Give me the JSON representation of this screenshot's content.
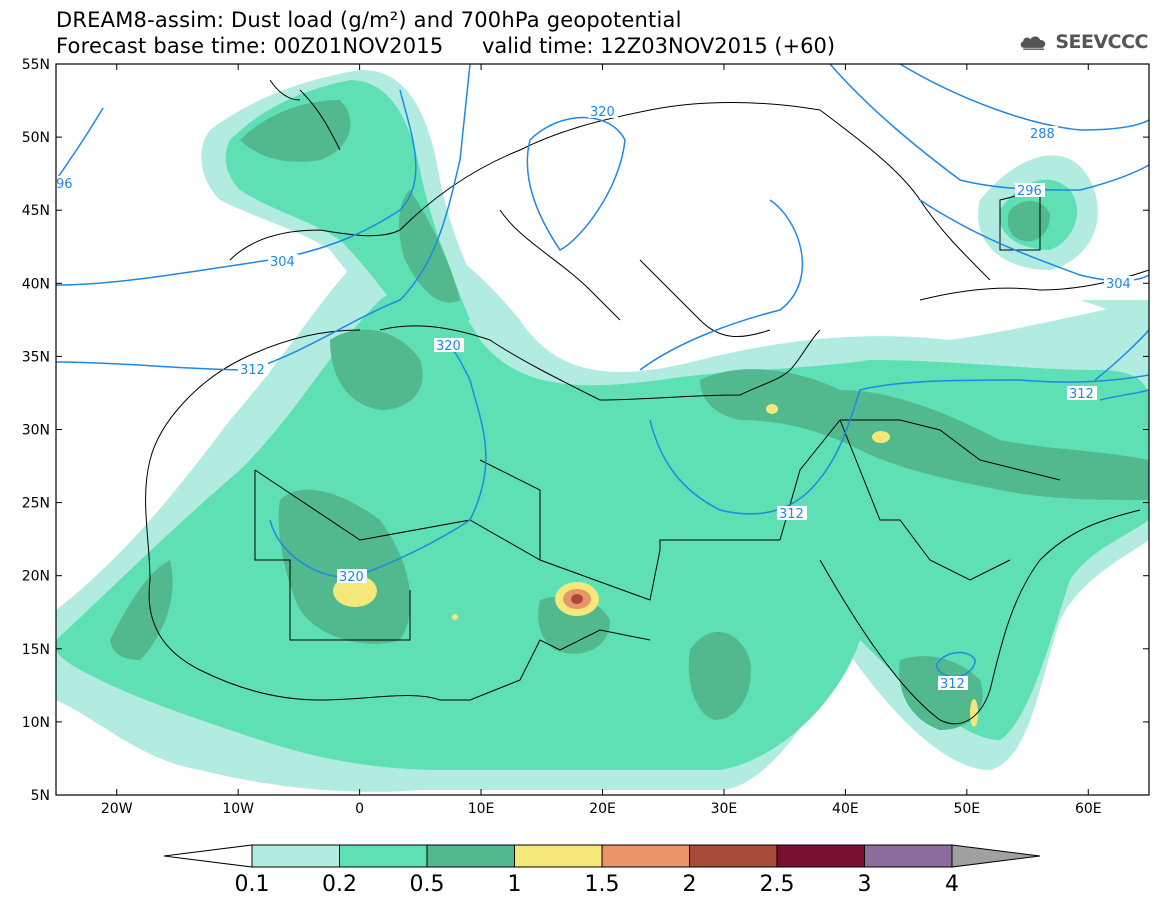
{
  "header": {
    "title_line1": "DREAM8-assim: Dust load (g/m²) and 700hPa geopotential",
    "title_line2_left": "Forecast base time: 00Z01NOV2015",
    "title_line2_right": "valid time: 12Z03NOV2015 (+60)",
    "logo_text": "SEEVCCC",
    "logo_icon": "cloud-icon"
  },
  "map": {
    "lon_range": [
      -25,
      65
    ],
    "lat_range": [
      5,
      55
    ],
    "lat_labels": [
      "55N",
      "50N",
      "45N",
      "40N",
      "35N",
      "30N",
      "25N",
      "20N",
      "15N",
      "10N",
      "5N"
    ],
    "lon_labels": [
      "20W",
      "10W",
      "0",
      "10E",
      "20E",
      "30E",
      "40E",
      "50E",
      "60E"
    ],
    "contour_labels": [
      "96",
      "304",
      "312",
      "320",
      "320",
      "320",
      "312",
      "312",
      "312",
      "288",
      "296",
      "304",
      "312"
    ]
  },
  "colorbar": {
    "levels": [
      "0.1",
      "0.2",
      "0.5",
      "1",
      "1.5",
      "2",
      "2.5",
      "3",
      "4"
    ],
    "colors": [
      "#ffffff",
      "#b2ece0",
      "#5fe0b4",
      "#52b88e",
      "#f5e87a",
      "#e8956a",
      "#a84a3a",
      "#7a1030",
      "#8c6c9c",
      "#a0a0a0"
    ]
  }
}
